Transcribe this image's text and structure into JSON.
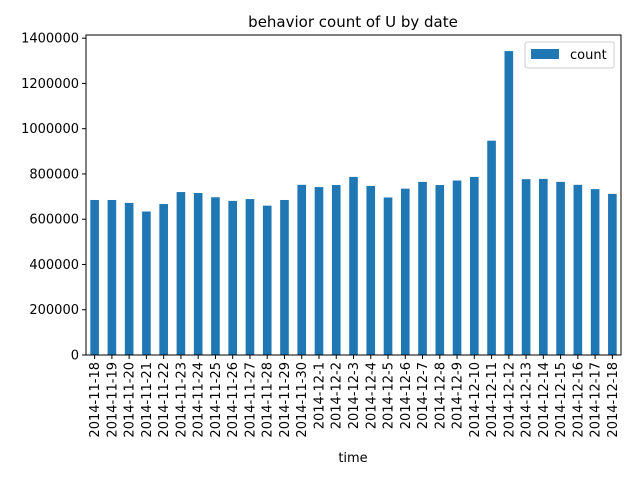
{
  "chart_data": {
    "type": "bar",
    "title": "behavior count of U by date",
    "xlabel": "time",
    "ylabel": "",
    "ylim": [
      0,
      1414000
    ],
    "yticks": [
      "0",
      "200000",
      "400000",
      "600000",
      "800000",
      "1000000",
      "1200000",
      "1400000"
    ],
    "grid": false,
    "legend_position": "top-right",
    "bar_color": "#1f77b4",
    "categories": [
      "2014-11-18",
      "2014-11-19",
      "2014-11-20",
      "2014-11-21",
      "2014-11-22",
      "2014-11-23",
      "2014-11-24",
      "2014-11-25",
      "2014-11-26",
      "2014-11-27",
      "2014-11-28",
      "2014-11-29",
      "2014-11-30",
      "2014-12-1",
      "2014-12-2",
      "2014-12-3",
      "2014-12-4",
      "2014-12-5",
      "2014-12-6",
      "2014-12-7",
      "2014-12-8",
      "2014-12-9",
      "2014-12-10",
      "2014-12-11",
      "2014-12-12",
      "2014-12-13",
      "2014-12-14",
      "2014-12-15",
      "2014-12-16",
      "2014-12-17",
      "2014-12-18"
    ],
    "series": [
      {
        "name": "count",
        "values": [
          685000,
          685000,
          672000,
          634000,
          667000,
          720000,
          716000,
          697000,
          681000,
          689000,
          660000,
          685000,
          752000,
          742000,
          751000,
          787000,
          747000,
          696000,
          735000,
          765000,
          751000,
          771000,
          787000,
          947000,
          1343000,
          777000,
          778000,
          765000,
          752000,
          733000,
          712000
        ]
      }
    ]
  }
}
